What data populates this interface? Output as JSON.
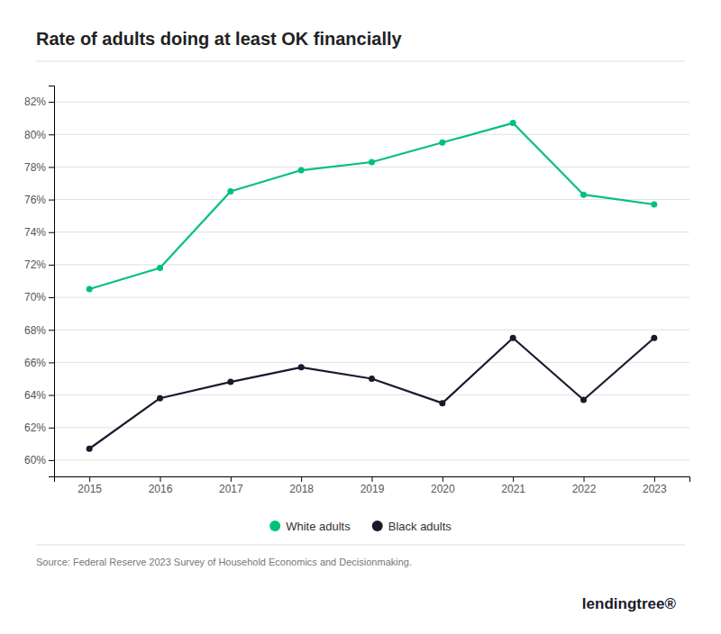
{
  "chart_data": {
    "type": "line",
    "title": "Rate of adults doing at least OK financially",
    "x": [
      2015,
      2016,
      2017,
      2018,
      2019,
      2020,
      2021,
      2022,
      2023
    ],
    "xlim": [
      2014.5,
      2023.5
    ],
    "xticks": [
      2015,
      2016,
      2017,
      2018,
      2019,
      2020,
      2021,
      2022,
      2023
    ],
    "ylim": [
      59,
      83
    ],
    "yticks": [
      {
        "value": 60,
        "label": "60%"
      },
      {
        "value": 62,
        "label": "62%"
      },
      {
        "value": 64,
        "label": "64%"
      },
      {
        "value": 66,
        "label": "66%"
      },
      {
        "value": 68,
        "label": "68%"
      },
      {
        "value": 70,
        "label": "70%"
      },
      {
        "value": 72,
        "label": "72%"
      },
      {
        "value": 74,
        "label": "74%"
      },
      {
        "value": 76,
        "label": "76%"
      },
      {
        "value": 78,
        "label": "78%"
      },
      {
        "value": 80,
        "label": "80%"
      },
      {
        "value": 82,
        "label": "82%"
      }
    ],
    "series": [
      {
        "name": "White adults",
        "color": "#00c17b",
        "marker": "circle",
        "values": [
          70.5,
          71.8,
          76.5,
          77.8,
          78.3,
          79.5,
          80.7,
          76.3,
          75.7
        ]
      },
      {
        "name": "Black adults",
        "color": "#1a1a2e",
        "marker": "circle",
        "values": [
          60.7,
          63.8,
          64.8,
          65.7,
          65.0,
          63.5,
          67.5,
          63.7,
          67.5
        ]
      }
    ],
    "grid": true,
    "legend": "bottom",
    "annotations": [
      "Source: Federal Reserve 2023 Survey of Household Economics and Decisionmaking.",
      "lendingtree®"
    ]
  }
}
